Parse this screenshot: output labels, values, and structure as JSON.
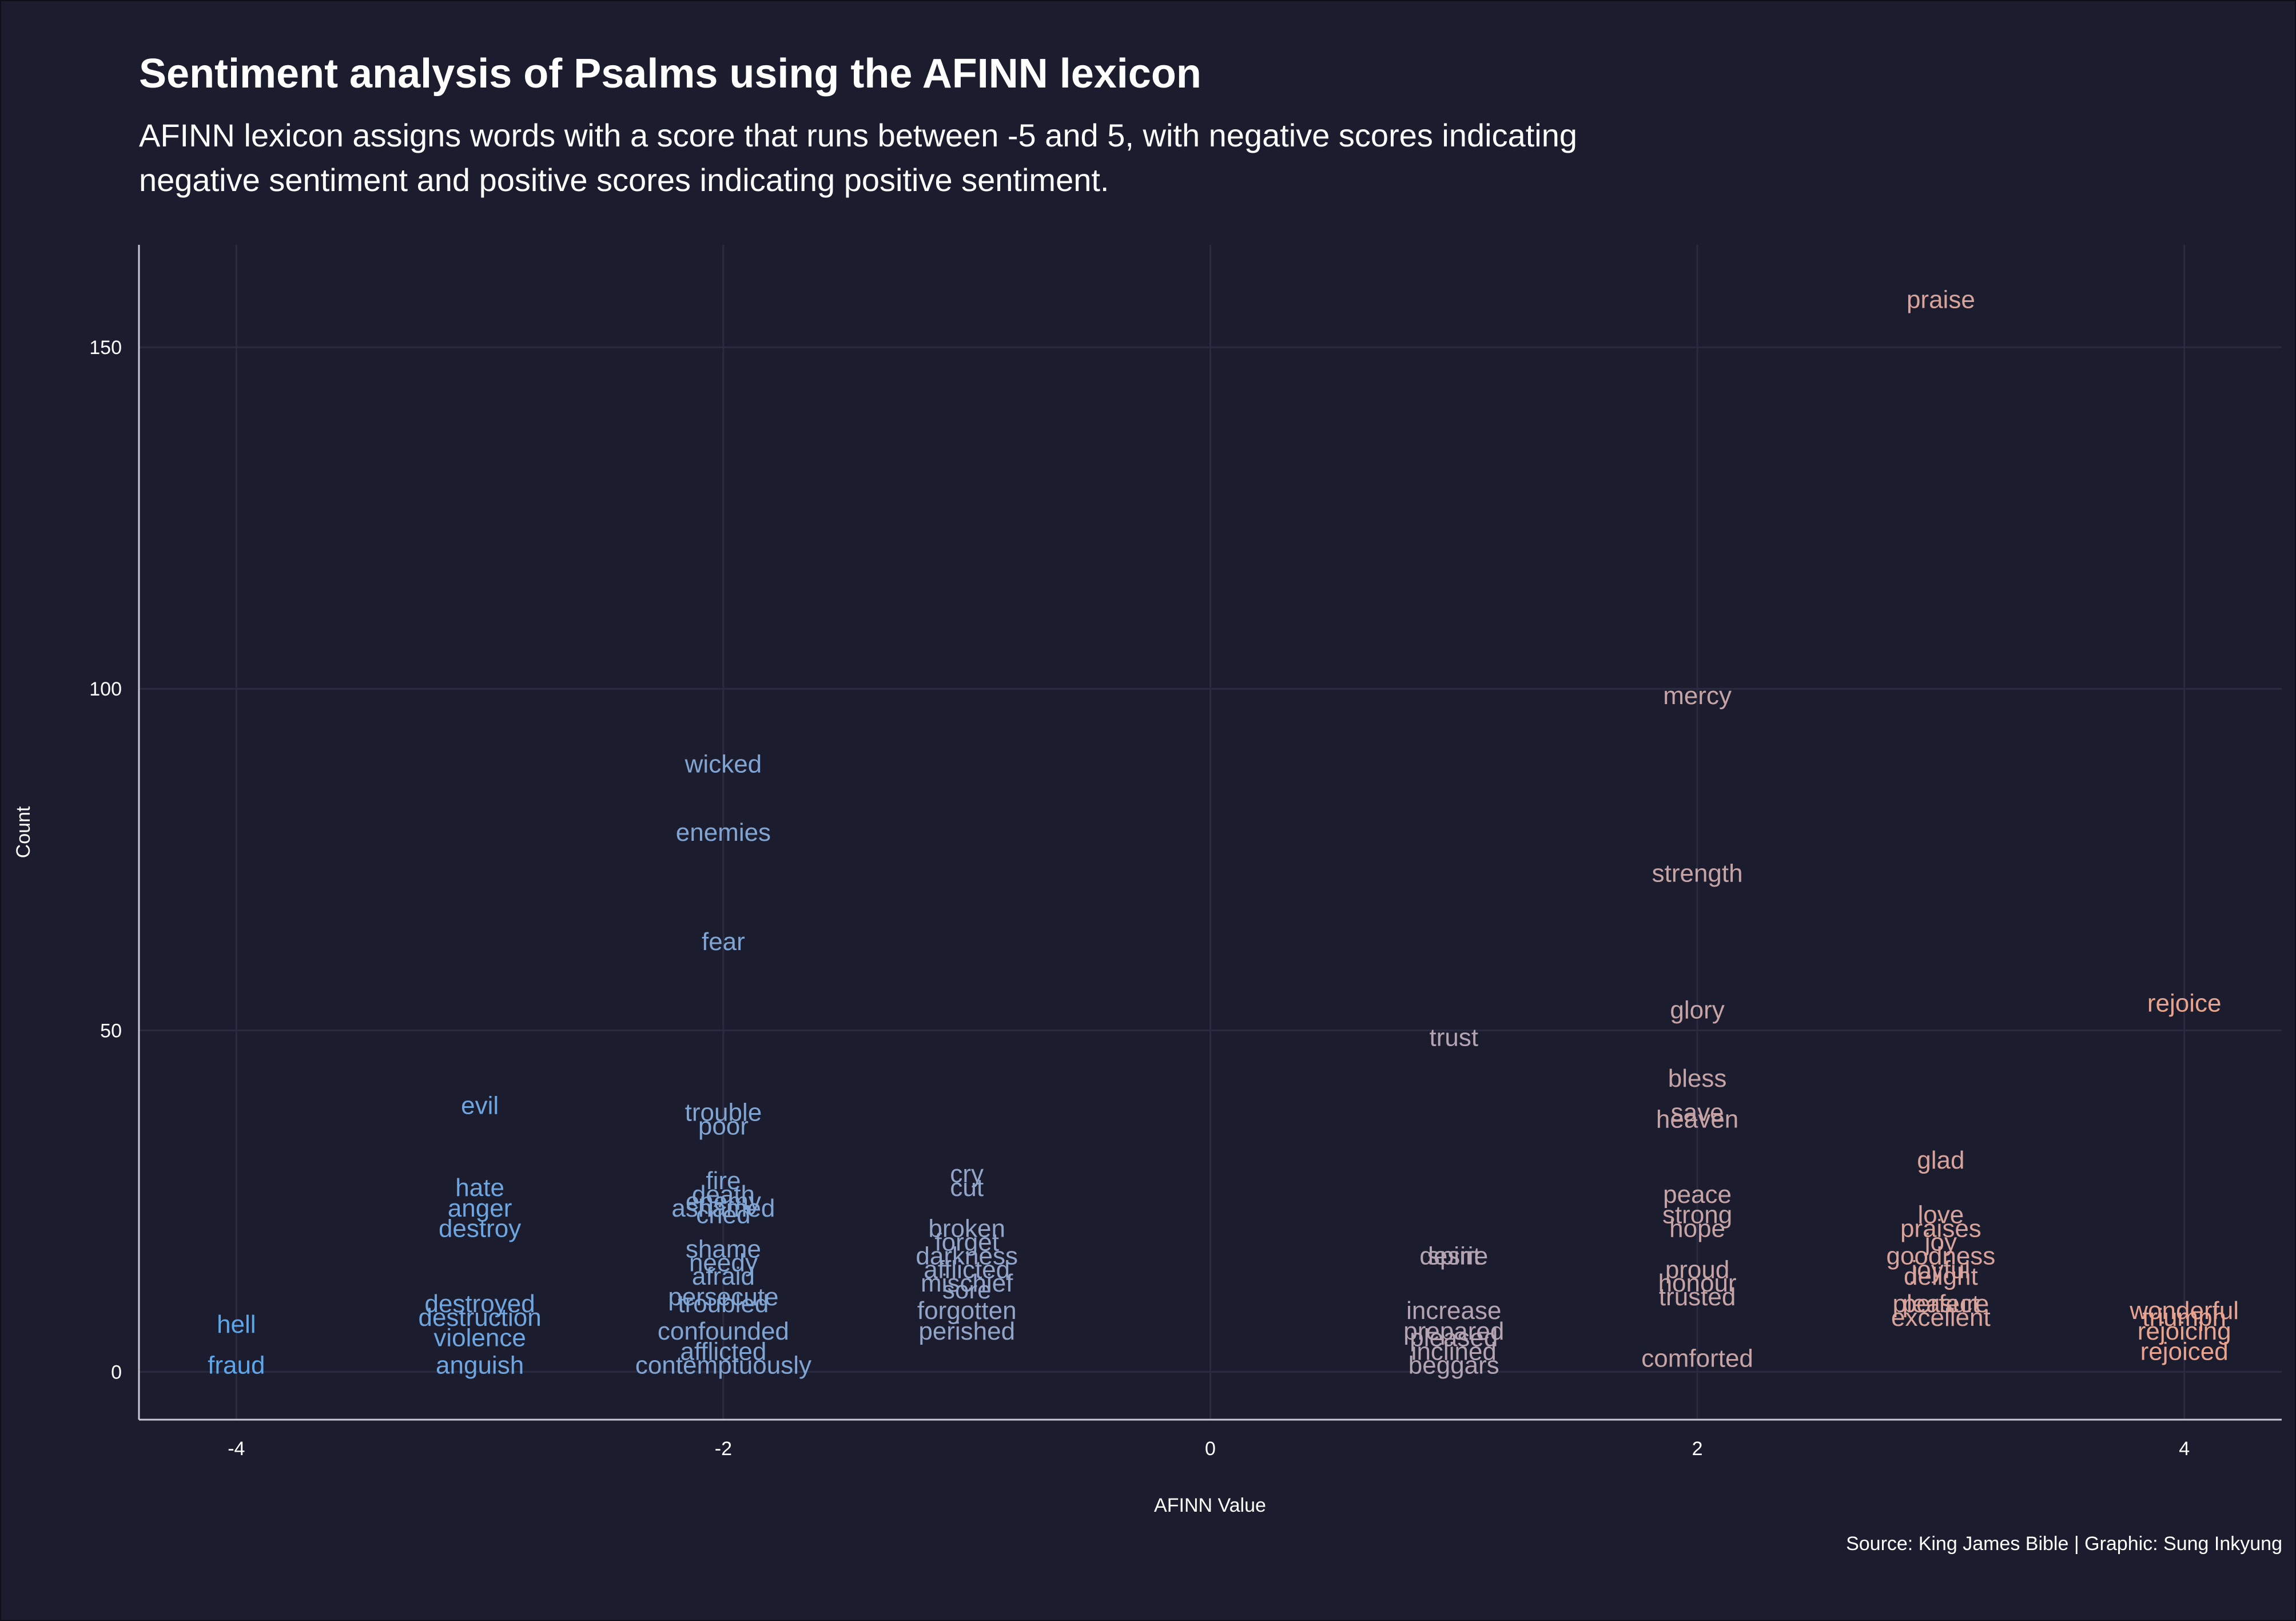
{
  "title": "Sentiment analysis of Psalms using the AFINN lexicon",
  "subtitle": "AFINN lexicon assigns words with a score that runs between -5 and 5, with negative scores indicating negative sentiment and positive scores indicating positive sentiment.",
  "caption": "Source: King James Bible | Graphic: Sung Inkyung",
  "colors": {
    "background": "#1b1c2e",
    "negative": "#5ea6ea",
    "positive": "#e8a38f",
    "grid": "#2a2b40"
  },
  "chart_data": {
    "type": "scatter",
    "title": "Sentiment analysis of Psalms using the AFINN lexicon",
    "subtitle": "AFINN lexicon assigns words with a score that runs between -5 and 5, with negative scores indicating negative sentiment and positive scores indicating positive sentiment.",
    "xlabel": "AFINN Value",
    "ylabel": "Count",
    "xlim": [
      -4.4,
      4.4
    ],
    "ylim": [
      -7,
      165
    ],
    "xticks": [
      -4,
      -2,
      0,
      2,
      4
    ],
    "yticks": [
      0,
      50,
      100,
      150
    ],
    "grid": true,
    "color_scale": "blue (negative) to salmon (positive)",
    "points": [
      {
        "label": "praise",
        "x": 3,
        "y": 157
      },
      {
        "label": "mercy",
        "x": 2,
        "y": 99
      },
      {
        "label": "wicked",
        "x": -2,
        "y": 89
      },
      {
        "label": "enemies",
        "x": -2,
        "y": 79
      },
      {
        "label": "strength",
        "x": 2,
        "y": 73
      },
      {
        "label": "fear",
        "x": -2,
        "y": 63
      },
      {
        "label": "rejoice",
        "x": 4,
        "y": 54
      },
      {
        "label": "glory",
        "x": 2,
        "y": 53
      },
      {
        "label": "trust",
        "x": 1,
        "y": 49
      },
      {
        "label": "bless",
        "x": 2,
        "y": 43
      },
      {
        "label": "evil",
        "x": -3,
        "y": 39
      },
      {
        "label": "trouble",
        "x": -2,
        "y": 38
      },
      {
        "label": "save",
        "x": 2,
        "y": 38
      },
      {
        "label": "heaven",
        "x": 2,
        "y": 37
      },
      {
        "label": "poor",
        "x": -2,
        "y": 36
      },
      {
        "label": "glad",
        "x": 3,
        "y": 31
      },
      {
        "label": "cry",
        "x": -1,
        "y": 29
      },
      {
        "label": "fire",
        "x": -2,
        "y": 28
      },
      {
        "label": "hate",
        "x": -3,
        "y": 27
      },
      {
        "label": "cut",
        "x": -1,
        "y": 27
      },
      {
        "label": "death",
        "x": -2,
        "y": 26
      },
      {
        "label": "peace",
        "x": 2,
        "y": 26
      },
      {
        "label": "enemy",
        "x": -2,
        "y": 25
      },
      {
        "label": "anger",
        "x": -3,
        "y": 24
      },
      {
        "label": "ashamed",
        "x": -2,
        "y": 24
      },
      {
        "label": "strong",
        "x": 2,
        "y": 23
      },
      {
        "label": "cried",
        "x": -2,
        "y": 23
      },
      {
        "label": "love",
        "x": 3,
        "y": 23
      },
      {
        "label": "destroy",
        "x": -3,
        "y": 21
      },
      {
        "label": "broken",
        "x": -1,
        "y": 21
      },
      {
        "label": "hope",
        "x": 2,
        "y": 21
      },
      {
        "label": "praises",
        "x": 3,
        "y": 21
      },
      {
        "label": "forget",
        "x": -1,
        "y": 19
      },
      {
        "label": "shame",
        "x": -2,
        "y": 18
      },
      {
        "label": "joy",
        "x": 3,
        "y": 19
      },
      {
        "label": "goodness",
        "x": 3,
        "y": 17
      },
      {
        "label": "desire",
        "x": 1,
        "y": 17
      },
      {
        "label": "spirit",
        "x": 1,
        "y": 17
      },
      {
        "label": "darkness",
        "x": -1,
        "y": 17
      },
      {
        "label": "needy",
        "x": -2,
        "y": 16
      },
      {
        "label": "afflicted",
        "x": -1,
        "y": 15
      },
      {
        "label": "proud",
        "x": 2,
        "y": 15
      },
      {
        "label": "joyful",
        "x": 3,
        "y": 15
      },
      {
        "label": "delight",
        "x": 3,
        "y": 14
      },
      {
        "label": "honour",
        "x": 2,
        "y": 13
      },
      {
        "label": "afraid",
        "x": -2,
        "y": 14
      },
      {
        "label": "mischief",
        "x": -1,
        "y": 13
      },
      {
        "label": "sore",
        "x": -1,
        "y": 12
      },
      {
        "label": "trusted",
        "x": 2,
        "y": 11
      },
      {
        "label": "persecute",
        "x": -2,
        "y": 11
      },
      {
        "label": "troubled",
        "x": -2,
        "y": 10
      },
      {
        "label": "destroyed",
        "x": -3,
        "y": 10
      },
      {
        "label": "pleasure",
        "x": 3,
        "y": 10
      },
      {
        "label": "perfect",
        "x": 3,
        "y": 10
      },
      {
        "label": "wonderful",
        "x": 4,
        "y": 9
      },
      {
        "label": "increase",
        "x": 1,
        "y": 9
      },
      {
        "label": "forgotten",
        "x": -1,
        "y": 9
      },
      {
        "label": "triumph",
        "x": 4,
        "y": 8
      },
      {
        "label": "destruction",
        "x": -3,
        "y": 8
      },
      {
        "label": "excellent",
        "x": 3,
        "y": 8
      },
      {
        "label": "hell",
        "x": -4,
        "y": 7
      },
      {
        "label": "rejoicing",
        "x": 4,
        "y": 6
      },
      {
        "label": "prepared",
        "x": 1,
        "y": 6
      },
      {
        "label": "pleased",
        "x": 1,
        "y": 5
      },
      {
        "label": "perished",
        "x": -1,
        "y": 6
      },
      {
        "label": "confounded",
        "x": -2,
        "y": 6
      },
      {
        "label": "violence",
        "x": -3,
        "y": 5
      },
      {
        "label": "rejoiced",
        "x": 4,
        "y": 3
      },
      {
        "label": "inclined",
        "x": 1,
        "y": 3
      },
      {
        "label": "afflicted",
        "x": -2,
        "y": 3
      },
      {
        "label": "fraud",
        "x": -4,
        "y": 1
      },
      {
        "label": "anguish",
        "x": -3,
        "y": 1
      },
      {
        "label": "contemptuously",
        "x": -2,
        "y": 1
      },
      {
        "label": "beggars",
        "x": 1,
        "y": 1
      },
      {
        "label": "comforted",
        "x": 2,
        "y": 2
      }
    ]
  }
}
